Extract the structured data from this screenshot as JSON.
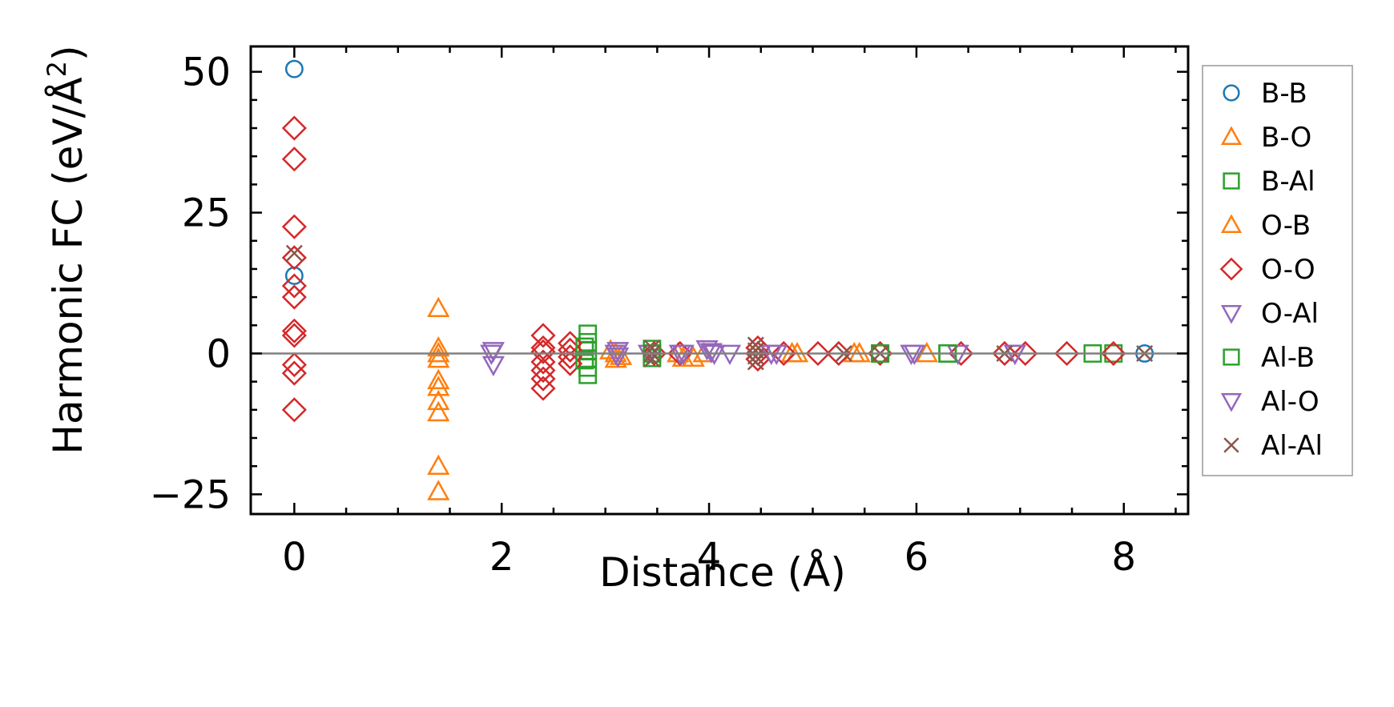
{
  "chart_data": {
    "type": "scatter",
    "xlabel": "Distance (Å)",
    "ylabel_main": "Harmonic FC (eV/Å",
    "ylabel_sup": "2",
    "ylabel_end": ")",
    "xlim": [
      -0.42,
      8.62
    ],
    "ylim": [
      -28.5,
      54.5
    ],
    "xticks": [
      0,
      2,
      4,
      6,
      8
    ],
    "xtick_labels": [
      "0",
      "2",
      "4",
      "6",
      "8"
    ],
    "yticks": [
      -25,
      0,
      25,
      50
    ],
    "ytick_labels": [
      "−25",
      "0",
      "25",
      "50"
    ],
    "zero_line": 0,
    "grid": false,
    "legend_position": "outside-right",
    "series": [
      {
        "name": "B-B",
        "marker": "circle",
        "color": "#1f77b4",
        "points": [
          [
            0,
            50.5
          ],
          [
            0,
            13.8
          ],
          [
            8.2,
            0
          ]
        ]
      },
      {
        "name": "B-O",
        "marker": "triangle-up",
        "color": "#ff7f0e",
        "points": [
          [
            1.39,
            8.0
          ],
          [
            1.39,
            1.0
          ],
          [
            1.39,
            0
          ],
          [
            1.39,
            -1.0
          ],
          [
            1.39,
            -4.8
          ],
          [
            1.39,
            -6.0
          ],
          [
            1.39,
            -8.5
          ],
          [
            1.39,
            -10.5
          ],
          [
            1.39,
            -20.0
          ],
          [
            1.39,
            -24.5
          ],
          [
            3.1,
            0
          ],
          [
            3.1,
            -1.0
          ],
          [
            3.75,
            -0.8
          ],
          [
            3.85,
            -0.8
          ],
          [
            4.8,
            0
          ],
          [
            5.45,
            0
          ],
          [
            6.1,
            0
          ]
        ]
      },
      {
        "name": "B-Al",
        "marker": "square",
        "color": "#2ca02c",
        "points": [
          [
            2.83,
            3.5
          ],
          [
            2.83,
            2.0
          ],
          [
            2.83,
            0.5
          ],
          [
            2.83,
            -1.0
          ],
          [
            2.83,
            -2.5
          ],
          [
            2.83,
            -3.8
          ],
          [
            3.45,
            0.8
          ],
          [
            3.45,
            -0.8
          ],
          [
            5.65,
            0
          ],
          [
            6.3,
            0
          ],
          [
            7.7,
            0
          ],
          [
            7.9,
            0
          ]
        ]
      },
      {
        "name": "O-B",
        "marker": "triangle-up",
        "color": "#ff7f0e",
        "points": [
          [
            3.05,
            0.5
          ],
          [
            3.15,
            -0.5
          ],
          [
            3.7,
            0
          ],
          [
            3.95,
            0
          ],
          [
            4.85,
            0
          ],
          [
            5.4,
            0
          ]
        ]
      },
      {
        "name": "O-O",
        "marker": "diamond",
        "color": "#d62728",
        "points": [
          [
            0,
            40.0
          ],
          [
            0,
            34.5
          ],
          [
            0,
            22.5
          ],
          [
            0,
            17.0
          ],
          [
            0,
            12.0
          ],
          [
            0,
            10.0
          ],
          [
            0,
            4.0
          ],
          [
            0,
            3.2
          ],
          [
            0,
            -2.0
          ],
          [
            0,
            -3.5
          ],
          [
            0,
            -10.0
          ],
          [
            2.4,
            3.2
          ],
          [
            2.4,
            1.0
          ],
          [
            2.4,
            0.3
          ],
          [
            2.4,
            -1.5
          ],
          [
            2.4,
            -3.0
          ],
          [
            2.4,
            -4.5
          ],
          [
            2.4,
            -6.2
          ],
          [
            2.66,
            1.8
          ],
          [
            2.66,
            0.6
          ],
          [
            2.66,
            -0.6
          ],
          [
            2.66,
            -1.8
          ],
          [
            3.47,
            0
          ],
          [
            3.72,
            0
          ],
          [
            4.47,
            1.0
          ],
          [
            4.47,
            0
          ],
          [
            4.47,
            -1.0
          ],
          [
            4.72,
            0
          ],
          [
            5.05,
            0
          ],
          [
            5.25,
            0
          ],
          [
            5.65,
            0
          ],
          [
            6.43,
            0
          ],
          [
            6.85,
            0
          ],
          [
            7.05,
            0
          ],
          [
            7.45,
            0
          ],
          [
            7.9,
            0
          ]
        ]
      },
      {
        "name": "O-Al",
        "marker": "triangle-down",
        "color": "#9467bd",
        "points": [
          [
            1.92,
            0.5
          ],
          [
            1.92,
            -2.0
          ],
          [
            3.12,
            0.5
          ],
          [
            3.12,
            -0.5
          ],
          [
            3.42,
            0
          ],
          [
            3.72,
            0
          ],
          [
            3.98,
            0.8
          ],
          [
            4.02,
            0.3
          ],
          [
            4.2,
            0
          ],
          [
            4.6,
            0
          ],
          [
            5.95,
            0
          ],
          [
            6.4,
            0
          ],
          [
            6.95,
            0
          ]
        ]
      },
      {
        "name": "Al-B",
        "marker": "square",
        "color": "#2ca02c",
        "points": [
          [
            2.8,
            1.2
          ],
          [
            2.8,
            -1.2
          ],
          [
            3.45,
            0
          ],
          [
            5.65,
            0
          ],
          [
            6.3,
            0
          ]
        ]
      },
      {
        "name": "Al-O",
        "marker": "triangle-down",
        "color": "#9467bd",
        "points": [
          [
            1.9,
            0
          ],
          [
            3.1,
            0
          ],
          [
            3.75,
            0
          ],
          [
            4.05,
            0
          ],
          [
            4.65,
            0
          ],
          [
            5.98,
            0
          ],
          [
            6.95,
            0
          ]
        ]
      },
      {
        "name": "Al-Al",
        "marker": "x",
        "color": "#8c564b",
        "points": [
          [
            0,
            17.8
          ],
          [
            3.45,
            1.0
          ],
          [
            3.45,
            0
          ],
          [
            3.45,
            -1.0
          ],
          [
            4.45,
            1.5
          ],
          [
            4.45,
            0.5
          ],
          [
            4.45,
            -0.5
          ],
          [
            4.45,
            -1.5
          ],
          [
            5.3,
            0
          ],
          [
            5.65,
            0
          ],
          [
            6.85,
            0
          ],
          [
            8.2,
            0
          ]
        ]
      }
    ]
  }
}
